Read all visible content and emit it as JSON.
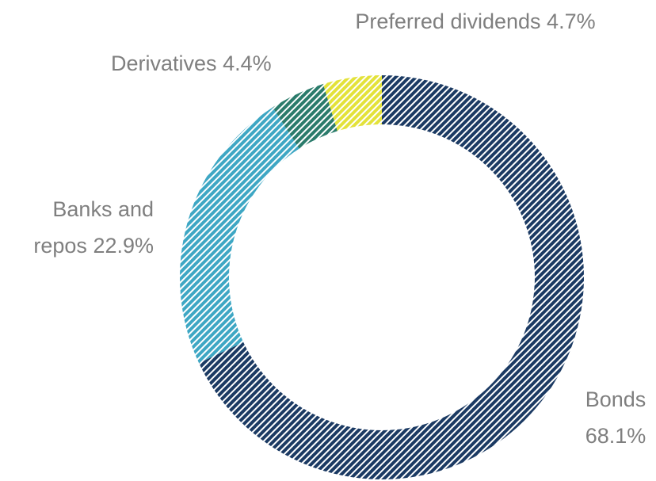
{
  "chart_data": {
    "type": "donut",
    "categories": [
      "Bonds",
      "Banks and repos",
      "Derivatives",
      "Preferred dividends"
    ],
    "values": [
      68.1,
      22.9,
      4.4,
      4.7
    ],
    "value_labels": [
      "68.1%",
      "22.9%",
      "4.4%",
      "4.7%"
    ],
    "colors": [
      "#1b3a63",
      "#3ea7c4",
      "#2a7b6b",
      "#e3e23a"
    ]
  }
}
